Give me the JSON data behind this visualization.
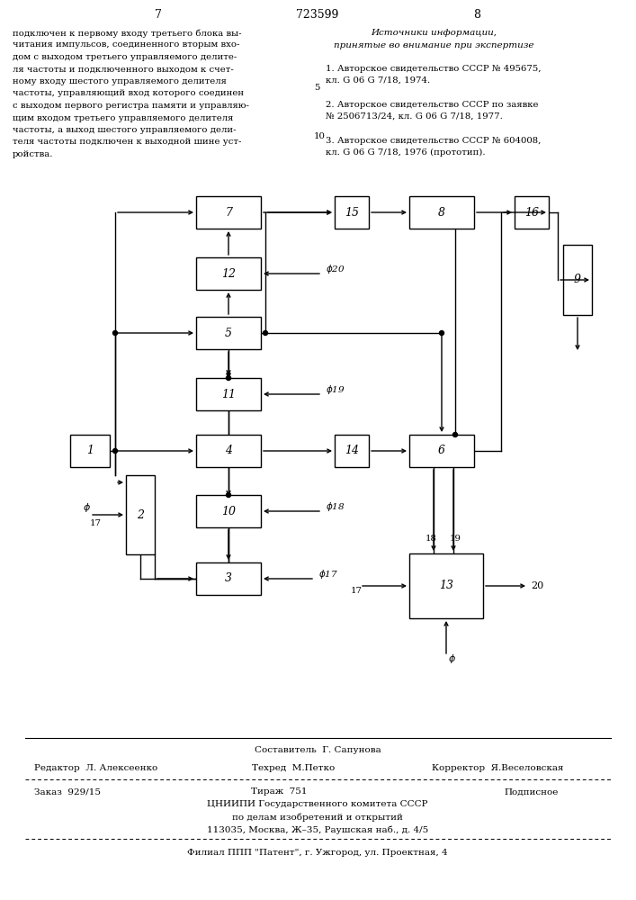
{
  "page_number_left": "7",
  "page_number_center": "723599",
  "page_number_right": "8",
  "left_text_lines": [
    "подключен к первому входу третьего блока вы-",
    "читания импульсов, соединенного вторым вхо-",
    "дом с выходом третьего управляемого делите-",
    "ля частоты и подключенного выходом к счет-",
    "ному входу шестого управляемого делителя",
    "частоты, управляющий вход которого соединен",
    "с выходом первого регистра памяти и управляю-",
    "щим входом третьего управляемого делителя",
    "частоты, а выход шестого управляемого дели-",
    "теля частоты подключен к выходной шине уст-",
    "ройства."
  ],
  "right_title1": "Источники информации,",
  "right_title2": "принятые во внимание при экспертизе",
  "ref1a": "1. Авторское свидетельство СССР № 495675,",
  "ref1b": "кл. G 06 G 7/18, 1974.",
  "ref2a": "2. Авторское свидетельство СССР по заявке",
  "ref2b": "№ 2506713/24, кл. G 06 G 7/18, 1977.",
  "ref3a": "3. Авторское свидетельство СССР № 604008,",
  "ref3b": "кл. G 06 G 7/18, 1976 (прототип).",
  "line_number_5": "5",
  "line_number_10": "10",
  "footer_line1": "Составитель  Г. Сапунова",
  "footer_editor": "Редактор  Л. Алексеенко",
  "footer_techred": "Техред  М.Петко",
  "footer_corrector": "Корректор  Я.Веселовская",
  "footer_order": "Заказ  929/15",
  "footer_tirazh": "Тираж  751",
  "footer_podpisnoe": "Подписное",
  "footer_cniip1": "ЦНИИПИ Государственного комитета СССР",
  "footer_cniip2": "по делам изобретений и открытий",
  "footer_cniip3": "113035, Москва, Ж–35, Раушская наб., д. 4/5",
  "footer_filial": "Филиал ППП \"Патент\", г. Ужгород, ул. Проектная, 4",
  "bg_color": "#ffffff"
}
